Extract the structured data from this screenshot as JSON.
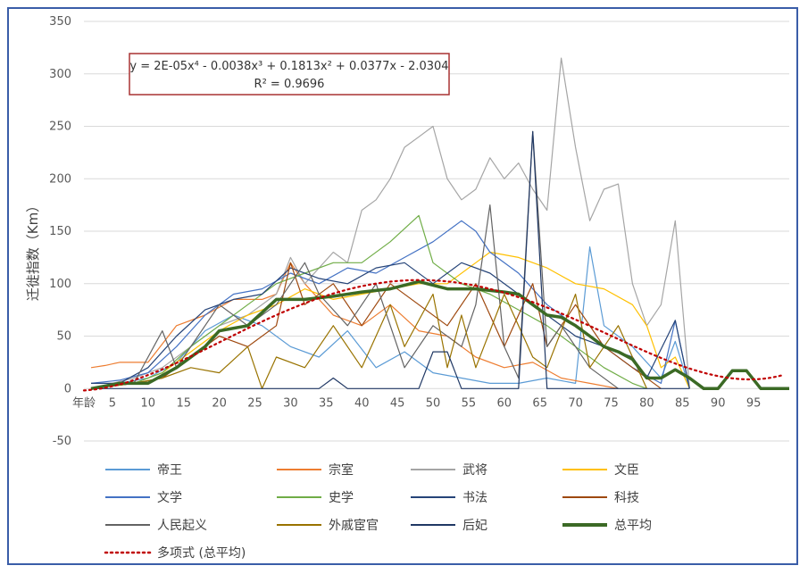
{
  "chart_data": {
    "type": "line",
    "title": "",
    "xlabel": "",
    "ylabel": "迁徙指数（Km）",
    "x_first_label": "年龄",
    "x_ticks": [
      5,
      10,
      15,
      20,
      25,
      30,
      35,
      40,
      45,
      50,
      55,
      60,
      65,
      70,
      75,
      80,
      85,
      90,
      95
    ],
    "xlim": [
      1,
      100
    ],
    "ylim": [
      -50,
      350
    ],
    "y_ticks": [
      -50,
      0,
      50,
      100,
      150,
      200,
      250,
      300,
      350
    ],
    "grid": true,
    "trendline": {
      "equation": "y = 2E-05x⁴ - 0.0038x³ + 0.1813x² + 0.0377x - 2.0304",
      "r2": "R² = 0.9696",
      "coefficients": [
        2e-05,
        -0.0038,
        0.1813,
        0.0377,
        -2.0304
      ],
      "name": "多项式 (总平均)",
      "color": "#c00000"
    },
    "series": [
      {
        "name": "帝王",
        "color": "#5b9bd5",
        "width": 1.2,
        "points": [
          [
            2,
            0
          ],
          [
            6,
            5
          ],
          [
            10,
            10
          ],
          [
            14,
            25
          ],
          [
            18,
            55
          ],
          [
            22,
            70
          ],
          [
            26,
            60
          ],
          [
            30,
            40
          ],
          [
            34,
            30
          ],
          [
            38,
            55
          ],
          [
            42,
            20
          ],
          [
            46,
            35
          ],
          [
            50,
            15
          ],
          [
            54,
            10
          ],
          [
            58,
            5
          ],
          [
            62,
            5
          ],
          [
            66,
            10
          ],
          [
            70,
            5
          ],
          [
            72,
            135
          ],
          [
            74,
            60
          ],
          [
            78,
            40
          ],
          [
            82,
            10
          ],
          [
            84,
            45
          ],
          [
            86,
            0
          ]
        ]
      },
      {
        "name": "宗室",
        "color": "#ed7d31",
        "width": 1.2,
        "points": [
          [
            2,
            20
          ],
          [
            4,
            22
          ],
          [
            6,
            25
          ],
          [
            10,
            25
          ],
          [
            14,
            60
          ],
          [
            18,
            70
          ],
          [
            22,
            85
          ],
          [
            26,
            85
          ],
          [
            28,
            90
          ],
          [
            30,
            120
          ],
          [
            32,
            100
          ],
          [
            36,
            70
          ],
          [
            40,
            60
          ],
          [
            44,
            80
          ],
          [
            48,
            55
          ],
          [
            52,
            50
          ],
          [
            56,
            30
          ],
          [
            60,
            20
          ],
          [
            64,
            25
          ],
          [
            68,
            10
          ],
          [
            72,
            5
          ],
          [
            76,
            0
          ]
        ]
      },
      {
        "name": "武将",
        "color": "#a5a5a5",
        "width": 1.2,
        "points": [
          [
            2,
            0
          ],
          [
            8,
            10
          ],
          [
            12,
            20
          ],
          [
            16,
            40
          ],
          [
            20,
            60
          ],
          [
            24,
            70
          ],
          [
            28,
            90
          ],
          [
            30,
            125
          ],
          [
            32,
            100
          ],
          [
            36,
            130
          ],
          [
            38,
            120
          ],
          [
            40,
            170
          ],
          [
            42,
            180
          ],
          [
            44,
            200
          ],
          [
            46,
            230
          ],
          [
            48,
            240
          ],
          [
            50,
            250
          ],
          [
            52,
            200
          ],
          [
            54,
            180
          ],
          [
            56,
            190
          ],
          [
            58,
            220
          ],
          [
            60,
            200
          ],
          [
            62,
            215
          ],
          [
            64,
            190
          ],
          [
            66,
            170
          ],
          [
            68,
            315
          ],
          [
            70,
            230
          ],
          [
            72,
            160
          ],
          [
            74,
            190
          ],
          [
            76,
            195
          ],
          [
            78,
            100
          ],
          [
            80,
            60
          ],
          [
            82,
            80
          ],
          [
            84,
            160
          ],
          [
            86,
            0
          ]
        ]
      },
      {
        "name": "文臣",
        "color": "#ffc000",
        "width": 1.2,
        "points": [
          [
            2,
            0
          ],
          [
            8,
            5
          ],
          [
            12,
            15
          ],
          [
            16,
            35
          ],
          [
            20,
            55
          ],
          [
            24,
            70
          ],
          [
            28,
            80
          ],
          [
            32,
            95
          ],
          [
            36,
            85
          ],
          [
            40,
            90
          ],
          [
            44,
            95
          ],
          [
            48,
            100
          ],
          [
            52,
            100
          ],
          [
            56,
            120
          ],
          [
            58,
            130
          ],
          [
            62,
            125
          ],
          [
            66,
            115
          ],
          [
            70,
            100
          ],
          [
            74,
            95
          ],
          [
            78,
            80
          ],
          [
            80,
            60
          ],
          [
            82,
            20
          ],
          [
            84,
            30
          ],
          [
            86,
            0
          ]
        ]
      },
      {
        "name": "文学",
        "color": "#4472c4",
        "width": 1.2,
        "points": [
          [
            2,
            5
          ],
          [
            6,
            8
          ],
          [
            10,
            15
          ],
          [
            14,
            40
          ],
          [
            18,
            70
          ],
          [
            22,
            90
          ],
          [
            26,
            95
          ],
          [
            30,
            110
          ],
          [
            34,
            100
          ],
          [
            38,
            115
          ],
          [
            42,
            110
          ],
          [
            46,
            125
          ],
          [
            50,
            140
          ],
          [
            54,
            160
          ],
          [
            56,
            150
          ],
          [
            58,
            130
          ],
          [
            62,
            110
          ],
          [
            66,
            80
          ],
          [
            70,
            60
          ],
          [
            74,
            40
          ],
          [
            78,
            20
          ],
          [
            82,
            5
          ],
          [
            84,
            65
          ],
          [
            86,
            0
          ]
        ]
      },
      {
        "name": "史学",
        "color": "#70ad47",
        "width": 1.2,
        "points": [
          [
            2,
            0
          ],
          [
            8,
            5
          ],
          [
            12,
            15
          ],
          [
            16,
            40
          ],
          [
            20,
            60
          ],
          [
            24,
            80
          ],
          [
            28,
            100
          ],
          [
            32,
            110
          ],
          [
            36,
            120
          ],
          [
            40,
            120
          ],
          [
            44,
            140
          ],
          [
            48,
            165
          ],
          [
            50,
            120
          ],
          [
            54,
            100
          ],
          [
            58,
            90
          ],
          [
            62,
            75
          ],
          [
            66,
            60
          ],
          [
            70,
            40
          ],
          [
            74,
            20
          ],
          [
            78,
            5
          ],
          [
            80,
            0
          ]
        ]
      },
      {
        "name": "书法",
        "color": "#264478",
        "width": 1.2,
        "points": [
          [
            2,
            5
          ],
          [
            6,
            5
          ],
          [
            10,
            20
          ],
          [
            14,
            50
          ],
          [
            18,
            75
          ],
          [
            22,
            85
          ],
          [
            26,
            90
          ],
          [
            30,
            115
          ],
          [
            34,
            105
          ],
          [
            38,
            100
          ],
          [
            42,
            115
          ],
          [
            46,
            120
          ],
          [
            50,
            100
          ],
          [
            54,
            120
          ],
          [
            58,
            110
          ],
          [
            62,
            90
          ],
          [
            66,
            70
          ],
          [
            70,
            50
          ],
          [
            74,
            40
          ],
          [
            78,
            30
          ],
          [
            80,
            10
          ],
          [
            84,
            65
          ],
          [
            86,
            0
          ]
        ]
      },
      {
        "name": "科技",
        "color": "#9e480e",
        "width": 1.2,
        "points": [
          [
            2,
            0
          ],
          [
            8,
            5
          ],
          [
            12,
            10
          ],
          [
            16,
            30
          ],
          [
            20,
            50
          ],
          [
            24,
            40
          ],
          [
            28,
            60
          ],
          [
            30,
            120
          ],
          [
            32,
            80
          ],
          [
            36,
            100
          ],
          [
            40,
            60
          ],
          [
            44,
            100
          ],
          [
            48,
            80
          ],
          [
            52,
            60
          ],
          [
            56,
            100
          ],
          [
            60,
            40
          ],
          [
            64,
            100
          ],
          [
            66,
            40
          ],
          [
            70,
            80
          ],
          [
            74,
            40
          ],
          [
            78,
            20
          ],
          [
            82,
            0
          ]
        ]
      },
      {
        "name": "人民起义",
        "color": "#636363",
        "width": 1.2,
        "points": [
          [
            2,
            0
          ],
          [
            8,
            5
          ],
          [
            12,
            55
          ],
          [
            14,
            20
          ],
          [
            18,
            60
          ],
          [
            20,
            80
          ],
          [
            24,
            60
          ],
          [
            28,
            80
          ],
          [
            32,
            120
          ],
          [
            34,
            90
          ],
          [
            38,
            60
          ],
          [
            42,
            100
          ],
          [
            46,
            20
          ],
          [
            50,
            60
          ],
          [
            54,
            40
          ],
          [
            56,
            80
          ],
          [
            58,
            175
          ],
          [
            60,
            40
          ],
          [
            62,
            10
          ],
          [
            64,
            245
          ],
          [
            66,
            40
          ],
          [
            68,
            60
          ],
          [
            72,
            20
          ],
          [
            76,
            0
          ]
        ]
      },
      {
        "name": "外戚宦官",
        "color": "#997300",
        "width": 1.2,
        "points": [
          [
            2,
            0
          ],
          [
            8,
            5
          ],
          [
            12,
            10
          ],
          [
            16,
            20
          ],
          [
            20,
            15
          ],
          [
            24,
            40
          ],
          [
            26,
            0
          ],
          [
            28,
            30
          ],
          [
            32,
            20
          ],
          [
            36,
            60
          ],
          [
            40,
            20
          ],
          [
            44,
            80
          ],
          [
            46,
            40
          ],
          [
            50,
            90
          ],
          [
            52,
            20
          ],
          [
            54,
            70
          ],
          [
            56,
            20
          ],
          [
            60,
            90
          ],
          [
            64,
            30
          ],
          [
            66,
            20
          ],
          [
            70,
            90
          ],
          [
            72,
            20
          ],
          [
            76,
            60
          ],
          [
            80,
            0
          ]
        ]
      },
      {
        "name": "后妃",
        "color": "#203864",
        "width": 1.2,
        "points": [
          [
            2,
            0
          ],
          [
            24,
            0
          ],
          [
            26,
            0
          ],
          [
            34,
            0
          ],
          [
            36,
            10
          ],
          [
            38,
            0
          ],
          [
            48,
            0
          ],
          [
            50,
            35
          ],
          [
            52,
            35
          ],
          [
            54,
            0
          ],
          [
            62,
            0
          ],
          [
            64,
            245
          ],
          [
            66,
            0
          ],
          [
            86,
            0
          ]
        ]
      },
      {
        "name": "总平均",
        "color": "#3b6a25",
        "width": 3.5,
        "points": [
          [
            2,
            0
          ],
          [
            6,
            5
          ],
          [
            10,
            5
          ],
          [
            14,
            20
          ],
          [
            18,
            40
          ],
          [
            20,
            55
          ],
          [
            24,
            60
          ],
          [
            28,
            85
          ],
          [
            32,
            85
          ],
          [
            36,
            88
          ],
          [
            40,
            92
          ],
          [
            44,
            95
          ],
          [
            48,
            102
          ],
          [
            52,
            95
          ],
          [
            56,
            95
          ],
          [
            60,
            92
          ],
          [
            62,
            90
          ],
          [
            64,
            80
          ],
          [
            66,
            70
          ],
          [
            68,
            68
          ],
          [
            70,
            60
          ],
          [
            72,
            50
          ],
          [
            74,
            40
          ],
          [
            76,
            35
          ],
          [
            78,
            28
          ],
          [
            80,
            10
          ],
          [
            82,
            10
          ],
          [
            84,
            18
          ],
          [
            86,
            10
          ],
          [
            88,
            0
          ],
          [
            90,
            0
          ],
          [
            92,
            17
          ],
          [
            94,
            17
          ],
          [
            96,
            0
          ],
          [
            100,
            0
          ]
        ]
      }
    ]
  }
}
